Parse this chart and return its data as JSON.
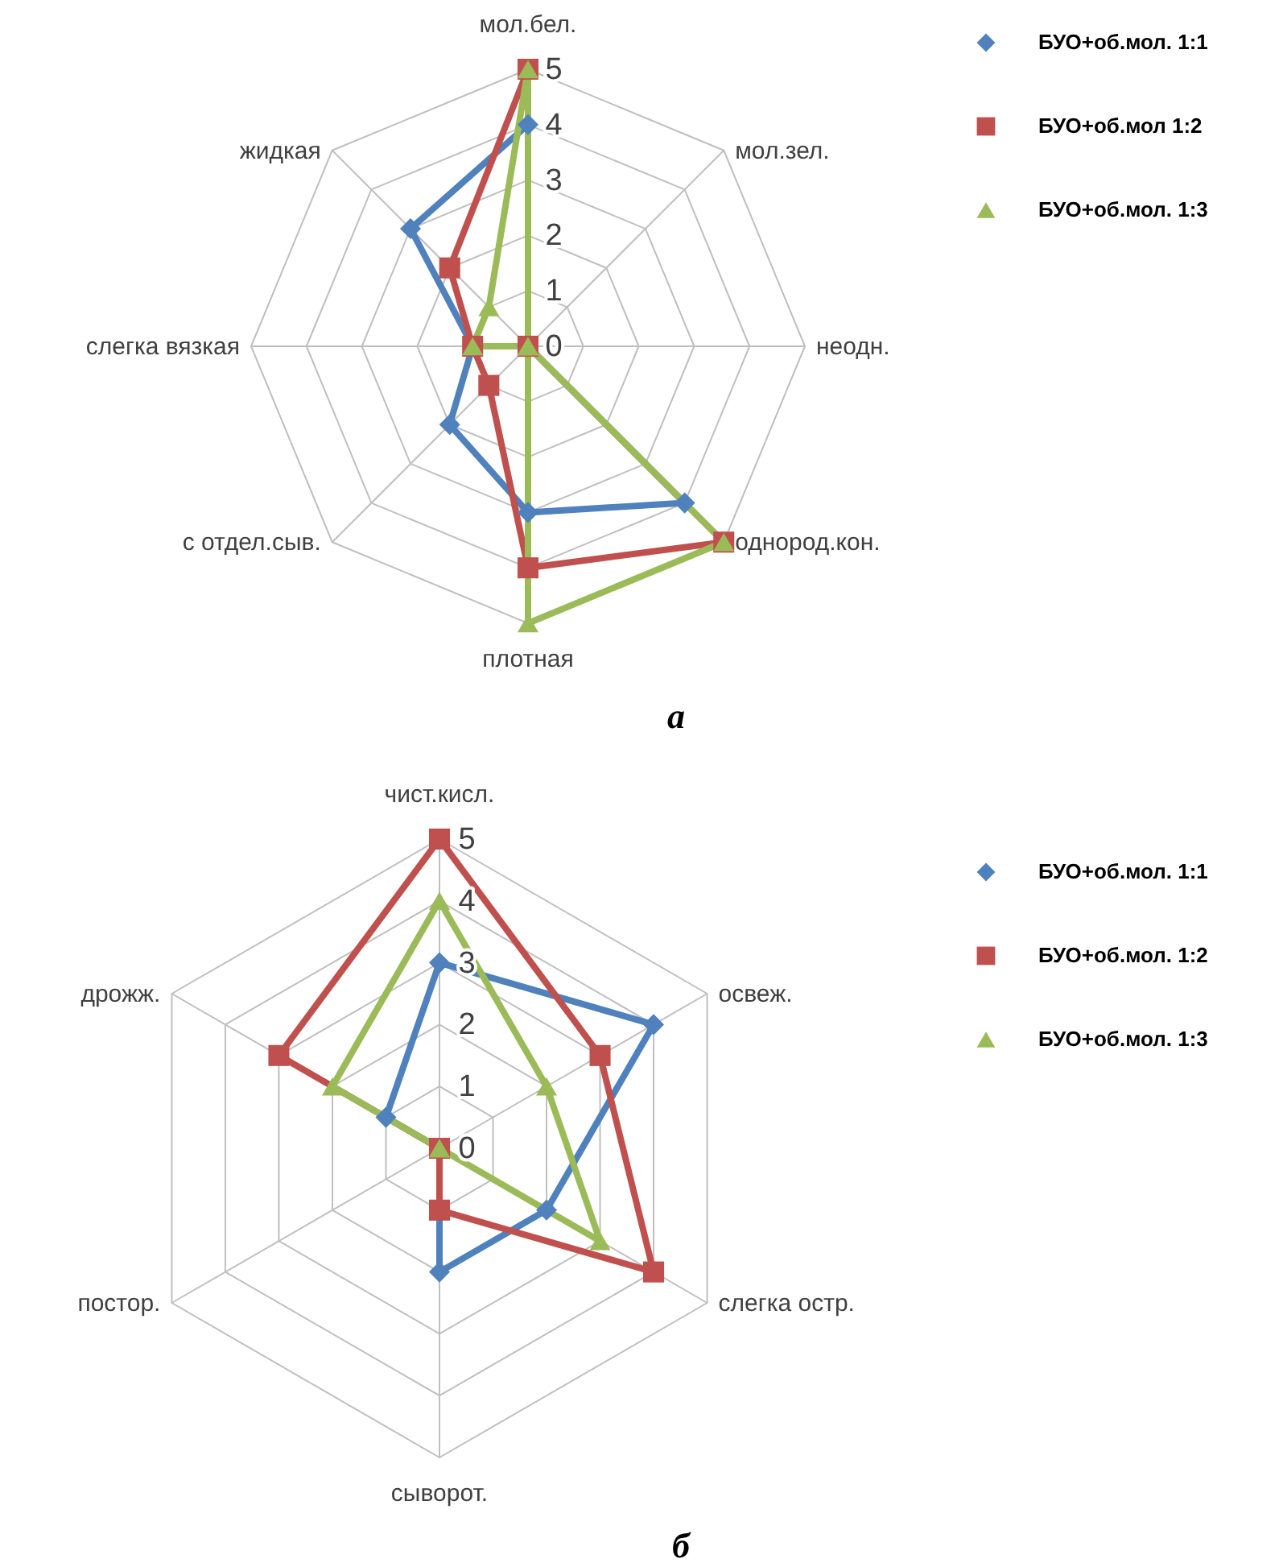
{
  "chart_data": [
    {
      "type": "radar",
      "categories": [
        "мол.бел.",
        "мол.зел.",
        "неодн.",
        "однород.кон.",
        "плотная",
        "с отдел.сыв.",
        "слегка вязкая",
        "жидкая"
      ],
      "series": [
        {
          "name": "БУО+об.мол. 1:1",
          "color": "#4f81bd",
          "marker": "diamond",
          "values": [
            4,
            0,
            0,
            4,
            3,
            2,
            1,
            3
          ]
        },
        {
          "name": "БУО+об.мол 1:2",
          "color": "#c0504d",
          "marker": "square",
          "values": [
            5,
            0,
            0,
            5,
            4,
            1,
            1,
            2
          ]
        },
        {
          "name": "БУО+об.мол. 1:3",
          "color": "#9bbb59",
          "marker": "triangle",
          "values": [
            5,
            0,
            0,
            5,
            5,
            0,
            1,
            1
          ]
        }
      ],
      "ylim": [
        0,
        5
      ],
      "yticks": [
        0,
        1,
        2,
        3,
        4,
        5
      ],
      "grid": true,
      "legend": "top right",
      "line_style": "solid",
      "annotations": [
        "а"
      ]
    },
    {
      "type": "radar",
      "categories": [
        "чист.кисл.",
        "освеж.",
        "слегка остр.",
        "сыворот.",
        "постор.",
        "дрожж."
      ],
      "series": [
        {
          "name": "БУО+об.мол. 1:1",
          "color": "#4f81bd",
          "marker": "diamond",
          "values": [
            3,
            4,
            2,
            2,
            0,
            1
          ]
        },
        {
          "name": "БУО+об.мол. 1:2",
          "color": "#c0504d",
          "marker": "square",
          "values": [
            5,
            3,
            4,
            1,
            0,
            3
          ]
        },
        {
          "name": "БУО+об.мол. 1:3",
          "color": "#9bbb59",
          "marker": "triangle",
          "values": [
            4,
            2,
            3,
            0,
            0,
            2
          ]
        }
      ],
      "ylim": [
        0,
        5
      ],
      "yticks": [
        0,
        1,
        2,
        3,
        4,
        5
      ],
      "grid": true,
      "legend": "right",
      "line_style": "solid",
      "annotations": [
        "б"
      ]
    }
  ]
}
